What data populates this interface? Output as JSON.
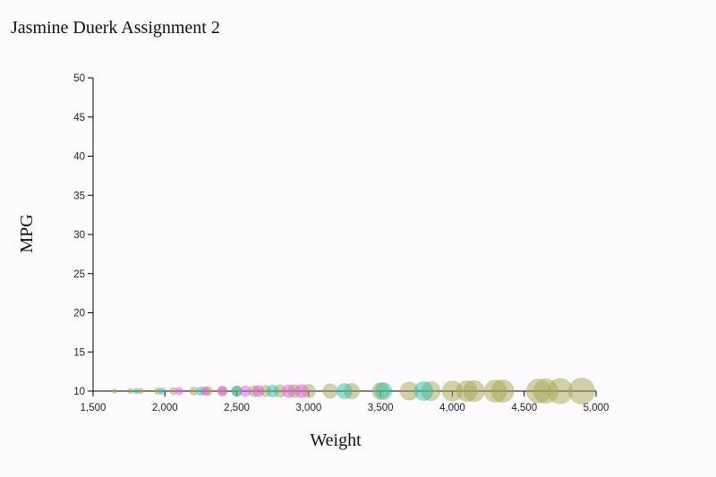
{
  "page": {
    "title": "Jasmine Duerk Assignment 2"
  },
  "chart_data": {
    "type": "scatter",
    "title": "Jasmine Duerk Assignment 2",
    "xlabel": "Weight",
    "ylabel": "MPG",
    "xlim": [
      1500,
      5000
    ],
    "ylim": [
      10,
      50
    ],
    "xticks": [
      1500,
      2000,
      2500,
      3000,
      3500,
      4000,
      4500,
      5000
    ],
    "yticks": [
      10,
      15,
      20,
      25,
      30,
      35,
      40,
      45,
      50
    ],
    "xtick_labels": [
      "1,500",
      "2,000",
      "2,500",
      "3,000",
      "3,500",
      "4,000",
      "4,500",
      "5,000"
    ],
    "ytick_labels": [
      "10",
      "15",
      "20",
      "25",
      "30",
      "35",
      "40",
      "45",
      "50"
    ],
    "grid": false,
    "colors": {
      "olive": "#a5a655",
      "teal": "#2cbfa9",
      "magenta": "#e05ae0"
    },
    "series": [
      {
        "color": "olive",
        "points": [
          {
            "x": 1650,
            "y": 10
          },
          {
            "x": 1760,
            "y": 10
          },
          {
            "x": 1830,
            "y": 10
          },
          {
            "x": 1950,
            "y": 10
          },
          {
            "x": 2060,
            "y": 10
          },
          {
            "x": 2200,
            "y": 10
          },
          {
            "x": 2300,
            "y": 10
          },
          {
            "x": 2400,
            "y": 10
          },
          {
            "x": 2500,
            "y": 10
          },
          {
            "x": 2620,
            "y": 10
          },
          {
            "x": 2700,
            "y": 10
          },
          {
            "x": 2800,
            "y": 10
          },
          {
            "x": 2900,
            "y": 10
          },
          {
            "x": 3000,
            "y": 10
          },
          {
            "x": 3150,
            "y": 10
          },
          {
            "x": 3300,
            "y": 10
          },
          {
            "x": 3500,
            "y": 10
          },
          {
            "x": 3700,
            "y": 10
          },
          {
            "x": 3850,
            "y": 10
          },
          {
            "x": 4000,
            "y": 10
          },
          {
            "x": 4100,
            "y": 10
          },
          {
            "x": 4150,
            "y": 10
          },
          {
            "x": 4300,
            "y": 10
          },
          {
            "x": 4350,
            "y": 10
          },
          {
            "x": 4600,
            "y": 10
          },
          {
            "x": 4650,
            "y": 10
          },
          {
            "x": 4750,
            "y": 10
          },
          {
            "x": 4900,
            "y": 10
          }
        ]
      },
      {
        "color": "teal",
        "points": [
          {
            "x": 1800,
            "y": 10
          },
          {
            "x": 1980,
            "y": 10
          },
          {
            "x": 2250,
            "y": 10
          },
          {
            "x": 2500,
            "y": 10
          },
          {
            "x": 2750,
            "y": 10
          },
          {
            "x": 3250,
            "y": 10
          },
          {
            "x": 3520,
            "y": 10
          },
          {
            "x": 3800,
            "y": 10
          }
        ]
      },
      {
        "color": "magenta",
        "points": [
          {
            "x": 2100,
            "y": 10
          },
          {
            "x": 2280,
            "y": 10
          },
          {
            "x": 2400,
            "y": 10
          },
          {
            "x": 2560,
            "y": 10
          },
          {
            "x": 2650,
            "y": 10
          },
          {
            "x": 2860,
            "y": 10
          },
          {
            "x": 2950,
            "y": 10
          }
        ]
      }
    ]
  }
}
